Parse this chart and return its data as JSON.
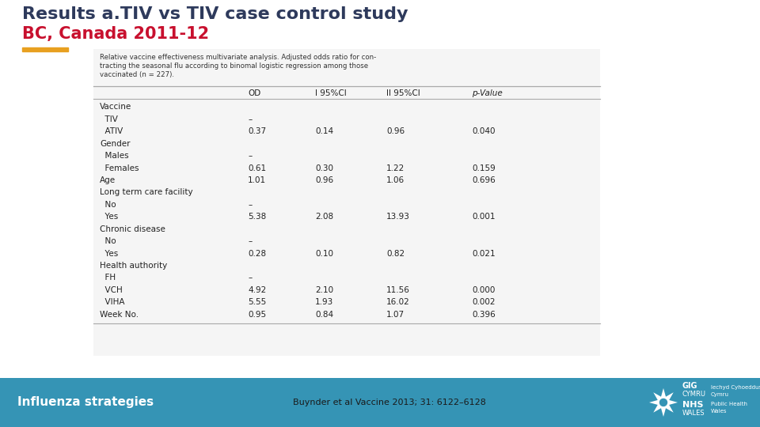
{
  "title_line1": "Results a.TIV vs TIV case control study",
  "title_line2": "BC, Canada 2011-12",
  "title_color": "#2E3A5C",
  "subtitle_color": "#C8102E",
  "background_color": "#ffffff",
  "footer_bg_color": "#3594B5",
  "footer_text": "Influenza strategies",
  "footer_citation": "Buynder et al Vaccine 2013; 31: 6122–6128",
  "accent_color": "#E8A020",
  "cap_lines": [
    "Relative vaccine effectiveness multivariate analysis. Adjusted odds ratio for con-",
    "tracting the seasonal flu according to binomal logistic regression among those",
    "vaccinated (n = 227)."
  ],
  "table_header": [
    "",
    "OD",
    "l 95%CI",
    "ll 95%CI",
    "p-Value"
  ],
  "table_rows": [
    [
      "Vaccine",
      "",
      "",
      "",
      ""
    ],
    [
      "  TIV",
      "–",
      "",
      "",
      ""
    ],
    [
      "  ATIV",
      "0.37",
      "0.14",
      "0.96",
      "0.040"
    ],
    [
      "Gender",
      "",
      "",
      "",
      ""
    ],
    [
      "  Males",
      "–",
      "",
      "",
      ""
    ],
    [
      "  Females",
      "0.61",
      "0.30",
      "1.22",
      "0.159"
    ],
    [
      "Age",
      "1.01",
      "0.96",
      "1.06",
      "0.696"
    ],
    [
      "Long term care facility",
      "",
      "",
      "",
      ""
    ],
    [
      "  No",
      "–",
      "",
      "",
      ""
    ],
    [
      "  Yes",
      "5.38",
      "2.08",
      "13.93",
      "0.001"
    ],
    [
      "Chronic disease",
      "",
      "",
      "",
      ""
    ],
    [
      "  No",
      "–",
      "",
      "",
      ""
    ],
    [
      "  Yes",
      "0.28",
      "0.10",
      "0.82",
      "0.021"
    ],
    [
      "Health authority",
      "",
      "",
      "",
      ""
    ],
    [
      "  FH",
      "–",
      "",
      "",
      ""
    ],
    [
      "  VCH",
      "4.92",
      "2.10",
      "11.56",
      "0.000"
    ],
    [
      "  VIHA",
      "5.55",
      "1.93",
      "16.02",
      "0.002"
    ],
    [
      "Week No.",
      "0.95",
      "0.84",
      "1.07",
      "0.396"
    ]
  ],
  "table_line_color": "#aaaaaa",
  "table_text_color": "#222222",
  "header_text_color": "#222222",
  "gig_text": [
    "GIG",
    "CYMRU",
    "NHS",
    "WALES"
  ],
  "side_text": [
    "Iechyd Cyhoeddus",
    "Cymru",
    "Public Health",
    "Wales"
  ]
}
